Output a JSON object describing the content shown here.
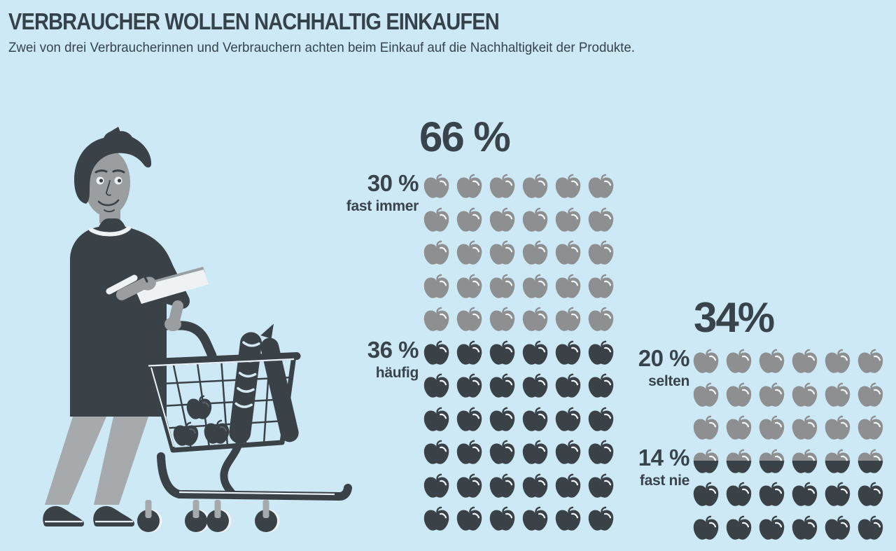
{
  "header": {
    "title": "VERBRAUCHER WOLLEN NACHHALTIG EINKAUFEN",
    "subtitle": "Zwei von drei Verbraucherinnen und Verbrauchern achten beim Einkauf auf die Nachhaltigkeit der Produkte."
  },
  "colors": {
    "background": "#cde9f6",
    "ink": "#39434b",
    "apple_gray": "#8d8f90",
    "apple_dark": "#3a4248",
    "highlight": "#f2f7fa",
    "skin": "#9b9ea0",
    "pants": "#a7aaac",
    "paper": "#eef2f4"
  },
  "icons": {
    "pictogram_unit": "apple-icon",
    "illustration": "shopper-with-shopping-cart"
  },
  "chart_data": [
    {
      "type": "pictogram",
      "title": "66 %",
      "total_percent": 66,
      "per_row": 6,
      "unit_percent_per_icon": 1,
      "icon": "apple-icon",
      "segments": [
        {
          "label": "30 %",
          "sublabel": "fast immer",
          "value": 30,
          "color": "#8d8f90"
        },
        {
          "label": "36 %",
          "sublabel": "häufig",
          "value": 36,
          "color": "#3a4248"
        }
      ]
    },
    {
      "type": "pictogram",
      "title": "34%",
      "total_percent": 34,
      "per_row": 6,
      "unit_percent_per_icon": 1,
      "icon": "apple-icon",
      "segments": [
        {
          "label": "20 %",
          "sublabel": "selten",
          "value": 20,
          "color": "#8d8f90"
        },
        {
          "label": "14 %",
          "sublabel": "fast nie",
          "value": 14,
          "color": "#3a4248"
        }
      ]
    }
  ]
}
